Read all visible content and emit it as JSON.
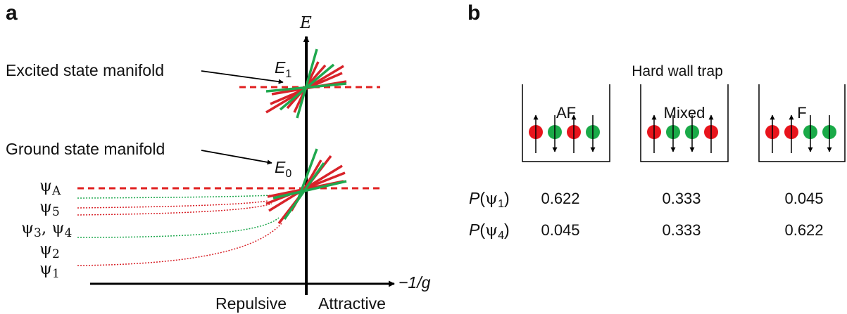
{
  "panel_a": {
    "letter": "a",
    "axis_y": "E",
    "axis_x": "−1/g",
    "region_left": "Repulsive",
    "region_right": "Attractive",
    "excited_label": "Excited state manifold",
    "excited_level": "E",
    "excited_sub": "1",
    "ground_label": "Ground state manifold",
    "ground_level": "E",
    "ground_sub": "0",
    "states": [
      {
        "sym": "ψ",
        "sub": "A"
      },
      {
        "sym": "ψ",
        "sub": "5"
      },
      {
        "sym": "ψ",
        "sub": "3",
        "sym2": "ψ",
        "sub2": "4"
      },
      {
        "sym": "ψ",
        "sub": "2"
      },
      {
        "sym": "ψ",
        "sub": "1"
      }
    ],
    "colors": {
      "red": "#d8232a",
      "green": "#1fa84e",
      "dashed": "#e02020"
    }
  },
  "panel_b": {
    "letter": "b",
    "title": "Hard wall trap",
    "traps": [
      {
        "name": "AF",
        "spins": [
          "red",
          "green",
          "red",
          "green"
        ]
      },
      {
        "name": "Mixed",
        "spins": [
          "red",
          "green",
          "green",
          "red"
        ]
      },
      {
        "name": "F",
        "spins": [
          "red",
          "red",
          "green",
          "green"
        ]
      }
    ],
    "rows": [
      {
        "label": "P",
        "psi": "ψ",
        "sub": "1",
        "values": [
          "0.622",
          "0.333",
          "0.045"
        ]
      },
      {
        "label": "P",
        "psi": "ψ",
        "sub": "4",
        "values": [
          "0.045",
          "0.333",
          "0.622"
        ]
      }
    ],
    "colors": {
      "red": "#e8141c",
      "green": "#1aaa48"
    }
  }
}
